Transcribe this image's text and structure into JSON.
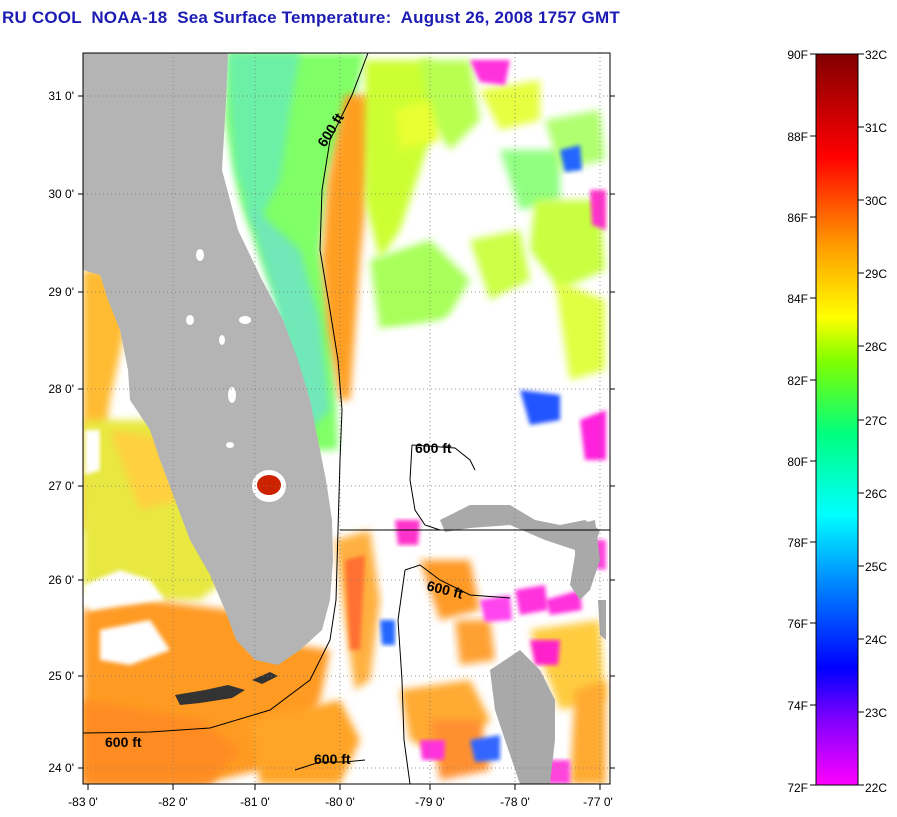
{
  "title": "RU COOL  NOAA-18  Sea Surface Temperature:  August 26, 2008 1757 GMT",
  "map": {
    "lon_range": [
      -83,
      -76.9
    ],
    "lat_range": [
      23.85,
      31.45
    ],
    "lat_ticks": [
      {
        "value": 31,
        "label": "31 0'"
      },
      {
        "value": 30,
        "label": "30 0'"
      },
      {
        "value": 29,
        "label": "29 0'"
      },
      {
        "value": 28,
        "label": "28 0'"
      },
      {
        "value": 27,
        "label": "27 0'"
      },
      {
        "value": 26,
        "label": "26 0'"
      },
      {
        "value": 25,
        "label": "25 0'"
      },
      {
        "value": 24,
        "label": "24 0'"
      }
    ],
    "lon_ticks": [
      {
        "value": -83,
        "label": "-83 0'"
      },
      {
        "value": -82,
        "label": "-82 0'"
      },
      {
        "value": -81,
        "label": "-81 0'"
      },
      {
        "value": -80,
        "label": "-80 0'"
      },
      {
        "value": -79,
        "label": "-79 0'"
      },
      {
        "value": -78,
        "label": "-78 0'"
      },
      {
        "value": -77,
        "label": "-77 0'"
      }
    ],
    "isobath_labels": [
      "600 ft",
      "600 ft",
      "600 ft",
      "600 ft",
      "600 ft"
    ],
    "colors": {
      "land": "#b4b4b4",
      "cloud": "#ffffff",
      "grid": "#555555",
      "isobath": "#000000"
    }
  },
  "colorbar": {
    "fahrenheit_labels": [
      "90F",
      "88F",
      "86F",
      "84F",
      "82F",
      "80F",
      "78F",
      "76F",
      "74F",
      "72F"
    ],
    "celsius_labels": [
      "32C",
      "31C",
      "30C",
      "29C",
      "28C",
      "27C",
      "26C",
      "25C",
      "24C",
      "23C",
      "22C"
    ],
    "color_stops": [
      "#ff00ff",
      "#7f00ff",
      "#0000ff",
      "#0080ff",
      "#00ffff",
      "#00ff80",
      "#80ff00",
      "#ffff00",
      "#ff9900",
      "#ff0000",
      "#800000"
    ]
  }
}
